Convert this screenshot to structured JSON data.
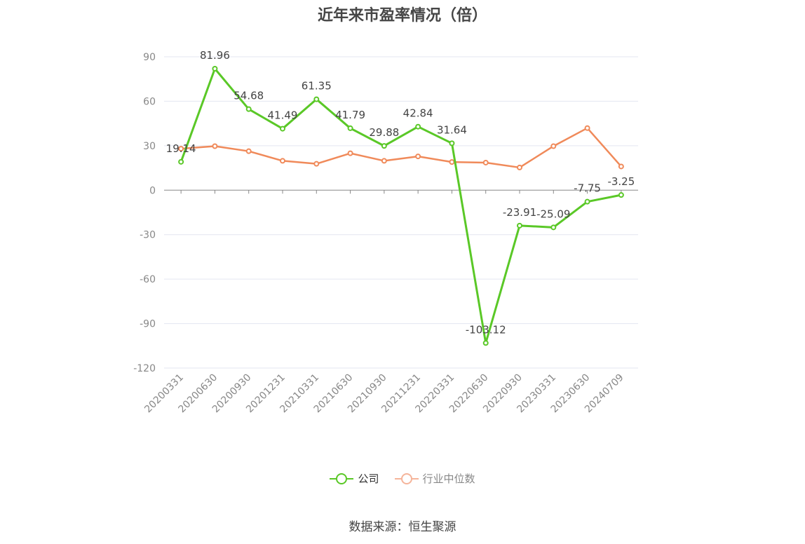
{
  "chart_data": {
    "type": "line",
    "title": "近年来市盈率情况（倍）",
    "categories": [
      "20200331",
      "20200630",
      "20200930",
      "20201231",
      "20210331",
      "20210630",
      "20210930",
      "20211231",
      "20220331",
      "20220630",
      "20220930",
      "20230331",
      "20230630",
      "20240709"
    ],
    "series": [
      {
        "name": "公司",
        "color": "#5ac827",
        "show_labels": true,
        "values": [
          19.14,
          81.96,
          54.68,
          41.49,
          61.35,
          41.79,
          29.88,
          42.84,
          31.64,
          -103.12,
          -23.91,
          -25.09,
          -7.75,
          -3.25
        ]
      },
      {
        "name": "行业中位数",
        "color": "#f08a5a",
        "show_labels": false,
        "values": [
          28.0,
          29.7,
          26.3,
          19.8,
          17.8,
          24.9,
          19.8,
          22.8,
          19.0,
          18.6,
          15.3,
          29.7,
          41.9,
          16.0
        ]
      }
    ],
    "ylim": [
      -120,
      90
    ],
    "yticks": [
      90,
      60,
      30,
      0,
      -30,
      -60,
      -90,
      -120
    ],
    "grid": true,
    "legend_position": "bottom"
  },
  "source_text": "数据来源：恒生聚源"
}
